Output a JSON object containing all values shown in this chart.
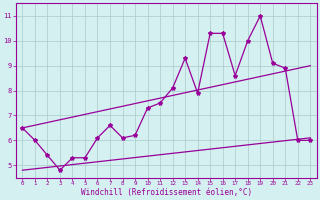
{
  "x": [
    0,
    1,
    2,
    3,
    4,
    5,
    6,
    7,
    8,
    9,
    10,
    11,
    12,
    13,
    14,
    15,
    16,
    17,
    18,
    19,
    20,
    21,
    22,
    23
  ],
  "line1": [
    6.5,
    6.0,
    5.4,
    4.8,
    5.3,
    5.3,
    6.1,
    6.6,
    6.1,
    6.2,
    7.3,
    7.5,
    8.1,
    9.3,
    7.9,
    10.3,
    10.3,
    8.6,
    10.0,
    11.0,
    9.1,
    8.9,
    6.0,
    6.0
  ],
  "trend_upper_start": 6.5,
  "trend_upper_end": 9.0,
  "trend_lower_start": 4.8,
  "trend_lower_end": 6.1,
  "color": "#990099",
  "bg_color": "#d4f0f0",
  "grid_color": "#aacccc",
  "ylim": [
    4.5,
    11.5
  ],
  "xlim": [
    -0.5,
    23.5
  ],
  "xlabel": "Windchill (Refroidissement éolien,°C)",
  "yticks": [
    5,
    6,
    7,
    8,
    9,
    10,
    11
  ],
  "xticks": [
    0,
    1,
    2,
    3,
    4,
    5,
    6,
    7,
    8,
    9,
    10,
    11,
    12,
    13,
    14,
    15,
    16,
    17,
    18,
    19,
    20,
    21,
    22,
    23
  ]
}
